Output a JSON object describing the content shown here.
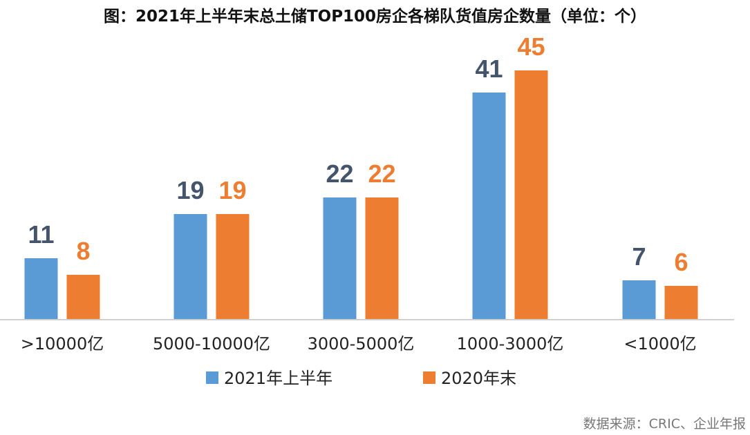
{
  "title": "图：2021年上半年末总土储TOP100房企各梯队货值房企数量（单位：个）",
  "source": "数据来源：CRIC、企业年报",
  "chart_data": {
    "type": "bar",
    "title": "图：2021年上半年末总土储TOP100房企各梯队货值房企数量（单位：个）",
    "xlabel": "",
    "ylabel": "",
    "ylim": [
      0,
      48
    ],
    "grid": false,
    "legend_position": "bottom",
    "categories": [
      ">10000亿",
      "5000-10000亿",
      "3000-5000亿",
      "1000-3000亿",
      "<1000亿"
    ],
    "series": [
      {
        "name": "2021年上半年",
        "color": "#5b9bd5",
        "label_color": "#44546a",
        "values": [
          11,
          19,
          22,
          41,
          7
        ]
      },
      {
        "name": "2020年末",
        "color": "#ed7d31",
        "label_color": "#ed7d31",
        "values": [
          8,
          19,
          22,
          45,
          6
        ]
      }
    ]
  }
}
